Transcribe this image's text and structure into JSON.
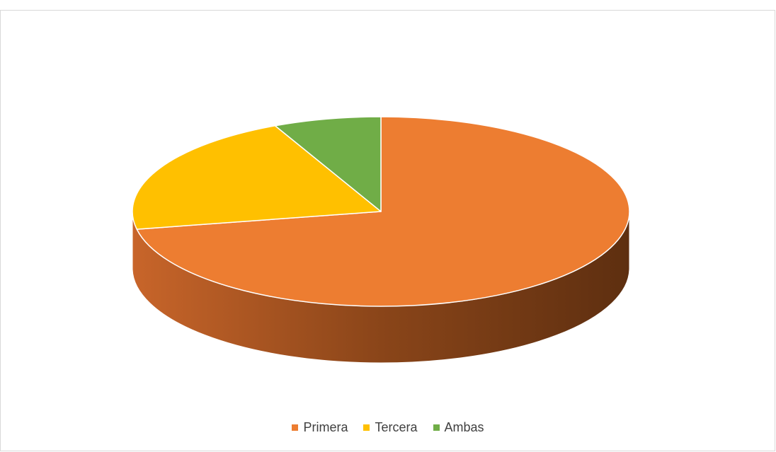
{
  "chart_data": {
    "type": "pie",
    "style": "3d",
    "title": "",
    "categories": [
      "Primera",
      "Tercera",
      "Ambas"
    ],
    "values": [
      72,
      21,
      7
    ],
    "value_format": "percent",
    "colors": [
      "#ED7D31",
      "#FFC000",
      "#70AD47"
    ],
    "side_colors": {
      "dark": "#5E2F10",
      "light": "#C8652A"
    },
    "legend_position": "bottom"
  }
}
